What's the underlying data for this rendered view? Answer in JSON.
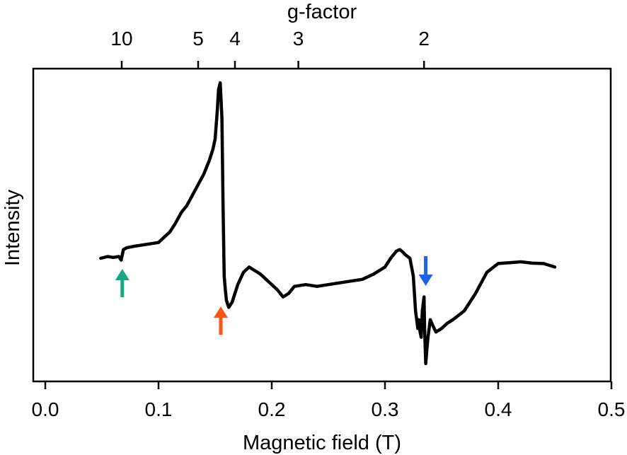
{
  "chart_data": {
    "type": "line",
    "title": "",
    "xlabel": "Magnetic field (T)",
    "ylabel": "Intensity",
    "xlim": [
      0.0,
      0.5
    ],
    "x_ticks": [
      "0.0",
      "0.1",
      "0.2",
      "0.3",
      "0.4",
      "0.5"
    ],
    "y_ticks": [],
    "grid": false,
    "secondary_x_axis": {
      "label": "g-factor",
      "ticks": [
        {
          "label": "10",
          "field_T": 0.0675
        },
        {
          "label": "5",
          "field_T": 0.135
        },
        {
          "label": "4",
          "field_T": 0.1675
        },
        {
          "label": "3",
          "field_T": 0.2235
        },
        {
          "label": "2",
          "field_T": 0.3345
        }
      ]
    },
    "series": [
      {
        "color": "#000000",
        "x": [
          0.049,
          0.055,
          0.06,
          0.065,
          0.067,
          0.069,
          0.072,
          0.08,
          0.09,
          0.1,
          0.105,
          0.11,
          0.115,
          0.12,
          0.125,
          0.13,
          0.135,
          0.14,
          0.145,
          0.148,
          0.15,
          0.152,
          0.153,
          0.1545,
          0.156,
          0.157,
          0.158,
          0.159,
          0.16,
          0.162,
          0.165,
          0.17,
          0.175,
          0.18,
          0.185,
          0.19,
          0.195,
          0.2,
          0.205,
          0.21,
          0.215,
          0.22,
          0.23,
          0.24,
          0.25,
          0.26,
          0.27,
          0.28,
          0.29,
          0.3,
          0.305,
          0.31,
          0.313,
          0.315,
          0.318,
          0.322,
          0.325,
          0.327,
          0.329,
          0.33,
          0.331,
          0.332,
          0.333,
          0.3345,
          0.335,
          0.336,
          0.337,
          0.338,
          0.34,
          0.342,
          0.345,
          0.35,
          0.355,
          0.36,
          0.37,
          0.38,
          0.39,
          0.4,
          0.41,
          0.42,
          0.43,
          0.44,
          0.45
        ],
        "y": [
          0.0,
          0.01,
          0.005,
          0.01,
          -0.01,
          0.05,
          0.06,
          0.07,
          0.08,
          0.09,
          0.12,
          0.15,
          0.2,
          0.26,
          0.3,
          0.36,
          0.42,
          0.48,
          0.56,
          0.62,
          0.68,
          0.85,
          0.96,
          1.0,
          0.8,
          0.3,
          -0.1,
          -0.18,
          -0.24,
          -0.28,
          -0.25,
          -0.15,
          -0.08,
          -0.05,
          -0.07,
          -0.09,
          -0.12,
          -0.15,
          -0.18,
          -0.22,
          -0.2,
          -0.16,
          -0.15,
          -0.16,
          -0.15,
          -0.14,
          -0.13,
          -0.12,
          -0.09,
          -0.05,
          0.0,
          0.04,
          0.05,
          0.04,
          0.02,
          0.0,
          -0.1,
          -0.3,
          -0.4,
          -0.35,
          -0.42,
          -0.45,
          -0.3,
          -0.22,
          -0.4,
          -0.6,
          -0.52,
          -0.45,
          -0.35,
          -0.38,
          -0.42,
          -0.4,
          -0.37,
          -0.35,
          -0.3,
          -0.2,
          -0.08,
          -0.03,
          -0.025,
          -0.02,
          -0.028,
          -0.03,
          -0.05
        ]
      }
    ],
    "annotations": [
      {
        "type": "arrow",
        "direction": "up",
        "x": 0.068,
        "color": "#16a884"
      },
      {
        "type": "arrow",
        "direction": "up",
        "x": 0.155,
        "color": "#f25a15"
      },
      {
        "type": "arrow",
        "direction": "down",
        "x": 0.336,
        "color": "#1c63e8"
      }
    ]
  }
}
